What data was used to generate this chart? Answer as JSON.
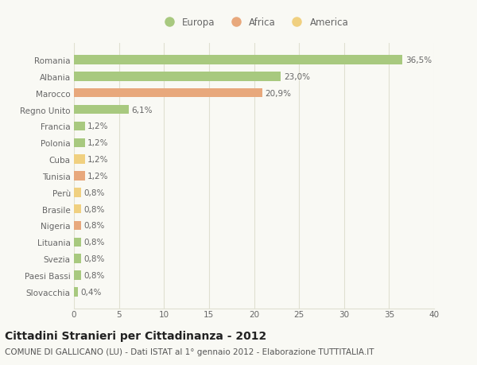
{
  "categories": [
    "Romania",
    "Albania",
    "Marocco",
    "Regno Unito",
    "Francia",
    "Polonia",
    "Cuba",
    "Tunisia",
    "Perù",
    "Brasile",
    "Nigeria",
    "Lituania",
    "Svezia",
    "Paesi Bassi",
    "Slovacchia"
  ],
  "values": [
    36.5,
    23.0,
    20.9,
    6.1,
    1.2,
    1.2,
    1.2,
    1.2,
    0.8,
    0.8,
    0.8,
    0.8,
    0.8,
    0.8,
    0.4
  ],
  "labels": [
    "36,5%",
    "23,0%",
    "20,9%",
    "6,1%",
    "1,2%",
    "1,2%",
    "1,2%",
    "1,2%",
    "0,8%",
    "0,8%",
    "0,8%",
    "0,8%",
    "0,8%",
    "0,8%",
    "0,4%"
  ],
  "colors": [
    "#a8c97f",
    "#a8c97f",
    "#e8a87c",
    "#a8c97f",
    "#a8c97f",
    "#a8c97f",
    "#f0d080",
    "#e8a87c",
    "#f0d080",
    "#f0d080",
    "#e8a87c",
    "#a8c97f",
    "#a8c97f",
    "#a8c97f",
    "#a8c97f"
  ],
  "legend_labels": [
    "Europa",
    "Africa",
    "America"
  ],
  "legend_colors": [
    "#a8c97f",
    "#e8a87c",
    "#f0d080"
  ],
  "title": "Cittadini Stranieri per Cittadinanza - 2012",
  "subtitle": "COMUNE DI GALLICANO (LU) - Dati ISTAT al 1° gennaio 2012 - Elaborazione TUTTITALIA.IT",
  "xlim": [
    0,
    40
  ],
  "xticks": [
    0,
    5,
    10,
    15,
    20,
    25,
    30,
    35,
    40
  ],
  "bg_color": "#f9f9f4",
  "grid_color": "#e0e0d0",
  "bar_height": 0.55,
  "title_fontsize": 10,
  "subtitle_fontsize": 7.5,
  "tick_fontsize": 7.5,
  "value_fontsize": 7.5,
  "legend_fontsize": 8.5
}
